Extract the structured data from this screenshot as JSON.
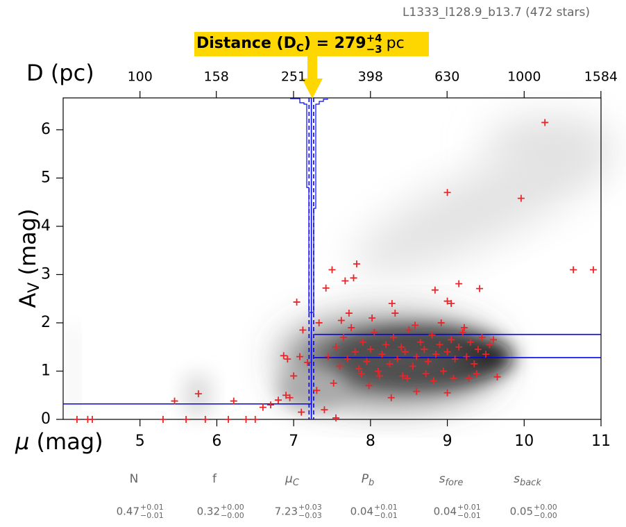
{
  "header": {
    "field": "L1333_l128.9_b13.7 (472 stars)"
  },
  "annotation": {
    "prefix": "Distance (D",
    "sub": "C",
    "eq": ") = 279",
    "plus": "+4",
    "minus": "−3",
    "unit": "pc"
  },
  "parameters": [
    {
      "name": "N",
      "value": "0.47",
      "plus": "+0.01",
      "minus": "−0.01"
    },
    {
      "name": "f",
      "value": "0.32",
      "plus": "+0.00",
      "minus": "−0.00"
    },
    {
      "name": "μ",
      "sub": "C",
      "value": "7.23",
      "plus": "+0.03",
      "minus": "−0.03"
    },
    {
      "name": "P",
      "sub": "b",
      "value": "0.04",
      "plus": "+0.01",
      "minus": "−0.01"
    },
    {
      "name": "s",
      "sub": "fore",
      "value": "0.04",
      "plus": "+0.01",
      "minus": "−0.01"
    },
    {
      "name": "s",
      "sub": "back",
      "value": "0.05",
      "plus": "+0.00",
      "minus": "−0.00"
    }
  ],
  "chart_data": {
    "type": "scatter",
    "x_label": {
      "symbol": "μ",
      "rest": " (mag)"
    },
    "y_label": {
      "main": "A",
      "sub": "V",
      "rest": " (mag)"
    },
    "x2_label": "D (pc)",
    "xlim": [
      4,
      11
    ],
    "xticks": [
      5,
      6,
      7,
      8,
      9,
      10,
      11
    ],
    "ylim": [
      0,
      6.66
    ],
    "yticks": [
      0,
      1,
      2,
      3,
      4,
      5,
      6
    ],
    "x2ticks": [
      100,
      158,
      251,
      398,
      630,
      1000,
      1584
    ],
    "color": "#e8262a",
    "line_color": "#0000ff",
    "x": [
      9.0,
      10.27,
      9.96,
      10.64,
      10.9,
      7.82,
      7.5,
      7.67,
      7.78,
      7.42,
      7.04,
      7.12,
      7.33,
      8.28,
      8.84,
      9.15,
      9.42,
      9.0,
      9.05,
      4.18,
      4.32,
      4.38,
      5.3,
      5.45,
      5.6,
      5.76,
      5.85,
      6.15,
      6.22,
      6.38,
      6.5,
      6.6,
      6.7,
      6.8,
      6.9,
      6.95,
      7.0,
      6.87,
      6.92,
      7.08,
      7.18,
      7.3,
      7.4,
      7.55,
      7.1,
      8.27,
      8.6,
      9.0,
      9.65,
      7.45,
      7.55,
      7.6,
      7.65,
      7.7,
      7.75,
      7.8,
      7.85,
      7.9,
      7.95,
      8.0,
      8.05,
      8.1,
      8.15,
      8.2,
      8.25,
      8.3,
      8.35,
      8.4,
      8.45,
      8.5,
      8.55,
      8.6,
      8.65,
      8.7,
      8.75,
      8.8,
      8.85,
      8.9,
      8.95,
      9.0,
      9.05,
      9.1,
      9.15,
      9.2,
      9.25,
      9.3,
      9.35,
      9.4,
      9.45,
      9.5,
      9.55,
      9.6,
      7.62,
      7.72,
      7.88,
      8.02,
      8.12,
      8.32,
      8.48,
      8.58,
      8.72,
      8.92,
      9.08,
      9.22,
      9.38,
      7.52,
      7.98,
      8.42,
      8.82,
      9.28
    ],
    "values": [
      4.7,
      6.15,
      4.58,
      3.1,
      3.1,
      3.22,
      3.1,
      2.87,
      2.93,
      2.72,
      2.43,
      1.85,
      2.0,
      2.4,
      2.68,
      2.81,
      2.71,
      2.45,
      2.4,
      0,
      0,
      0,
      0,
      0.38,
      0,
      0.53,
      0,
      0,
      0.38,
      0,
      0,
      0.25,
      0.3,
      0.4,
      0.5,
      0.45,
      0.9,
      1.32,
      1.25,
      1.3,
      1.18,
      0.6,
      0.2,
      0.03,
      0.15,
      0.45,
      0.58,
      0.55,
      0.88,
      1.3,
      1.5,
      1.1,
      1.7,
      1.25,
      1.9,
      1.4,
      1.05,
      1.6,
      1.2,
      1.45,
      1.8,
      1.0,
      1.35,
      1.55,
      1.15,
      1.7,
      1.25,
      1.5,
      1.4,
      1.85,
      1.1,
      1.3,
      1.6,
      1.45,
      1.2,
      1.75,
      1.35,
      1.55,
      1.0,
      1.4,
      1.65,
      1.25,
      1.5,
      1.8,
      1.3,
      1.6,
      1.15,
      1.45,
      1.7,
      1.35,
      1.55,
      1.65,
      2.05,
      2.2,
      0.95,
      2.1,
      0.9,
      2.2,
      0.85,
      1.95,
      0.95,
      2.0,
      0.85,
      1.9,
      0.95,
      0.75,
      0.7,
      0.9,
      0.8,
      0.85
    ],
    "hlines": [
      {
        "y": 0.32,
        "x": [
          4,
          7.23
        ]
      },
      {
        "y": 1.76,
        "x": [
          7.27,
          11
        ]
      },
      {
        "y": 1.28,
        "x": [
          7.27,
          11
        ]
      }
    ],
    "distance_mu": 7.23,
    "distance_band": [
      7.2,
      7.26
    ]
  }
}
